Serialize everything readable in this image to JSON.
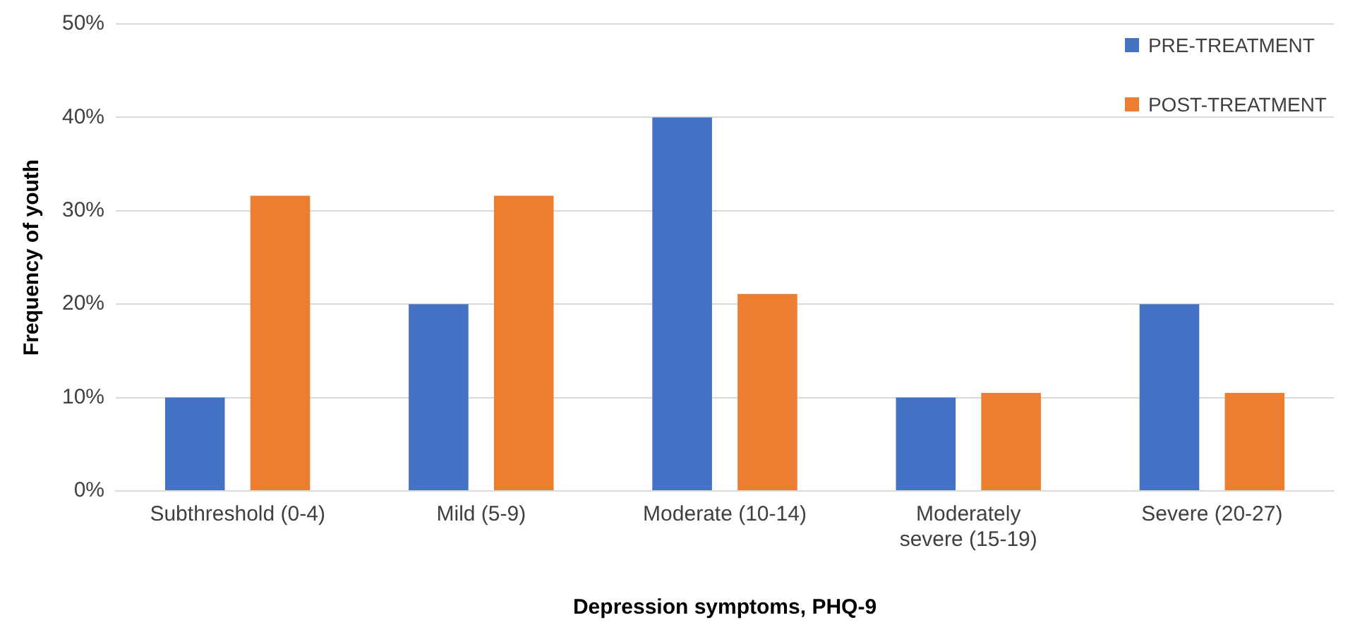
{
  "chart_data": {
    "type": "bar",
    "xlabel": "Depression symptoms, PHQ-9",
    "ylabel": "Frequency of youth",
    "categories": [
      "Subthreshold (0-4)",
      "Mild (5-9)",
      "Moderate (10-14)",
      "Moderately severe (15-19)",
      "Severe (20-27)"
    ],
    "series": [
      {
        "name": "PRE-TREATMENT",
        "color": "#4472c4",
        "values": [
          10,
          20,
          40,
          10,
          20
        ]
      },
      {
        "name": "POST-TREATMENT",
        "color": "#ed7d31",
        "values": [
          31.6,
          31.6,
          21.1,
          10.5,
          10.5
        ]
      }
    ],
    "ylim": [
      0,
      50
    ],
    "yticks": [
      {
        "value": 0,
        "label": "0%"
      },
      {
        "value": 10,
        "label": "10%"
      },
      {
        "value": 20,
        "label": "20%"
      },
      {
        "value": 30,
        "label": "30%"
      },
      {
        "value": 40,
        "label": "40%"
      },
      {
        "value": 50,
        "label": "50%"
      }
    ],
    "grid": "y",
    "legend": "top right"
  }
}
